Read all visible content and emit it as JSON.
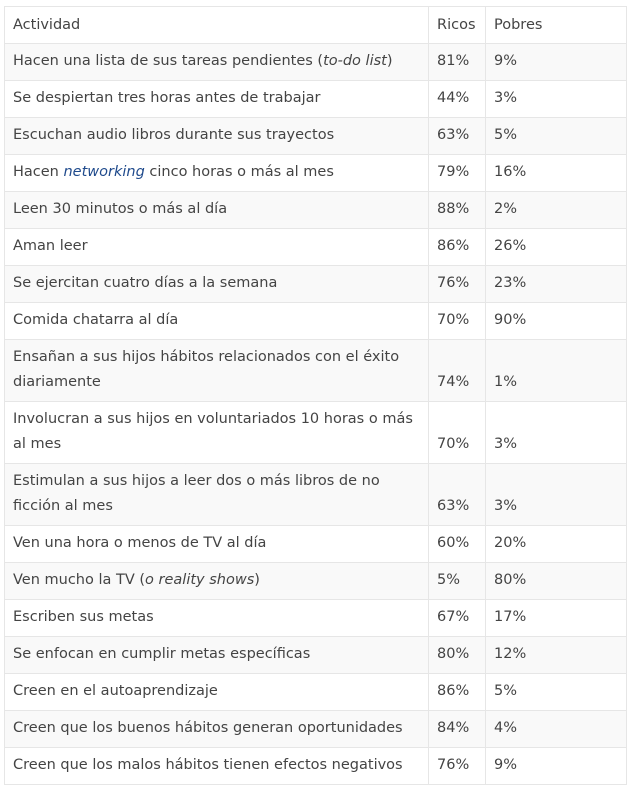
{
  "table": {
    "headers": [
      "Actividad",
      "Ricos",
      "Pobres"
    ],
    "rows": [
      {
        "pre": "Hacen una lista de sus tareas pendientes (",
        "em": "to-do list",
        "post": ")",
        "ricos": "81%",
        "pobres": "9%"
      },
      {
        "activity": "Se despiertan tres horas antes de trabajar",
        "ricos": "44%",
        "pobres": "3%"
      },
      {
        "activity": "Escuchan audio libros durante sus trayectos",
        "ricos": "63%",
        "pobres": "5%"
      },
      {
        "pre": "Hacen ",
        "link": "networking",
        "post": " cinco horas o más al mes",
        "ricos": "79%",
        "pobres": "16%"
      },
      {
        "activity": "Leen 30 minutos o más al día",
        "ricos": "88%",
        "pobres": "2%"
      },
      {
        "activity": "Aman leer",
        "ricos": "86%",
        "pobres": "26%"
      },
      {
        "activity": "Se ejercitan cuatro días a la semana",
        "ricos": "76%",
        "pobres": "23%"
      },
      {
        "activity": "Comida chatarra al día",
        "ricos": "70%",
        "pobres": "90%"
      },
      {
        "activity": "Ensañan a sus hijos hábitos relacionados con el éxito diariamente",
        "ricos": "74%",
        "pobres": "1%"
      },
      {
        "activity": "Involucran a sus hijos en voluntariados 10 horas o más al mes",
        "ricos": "70%",
        "pobres": "3%"
      },
      {
        "activity": "Estimulan a sus hijos a leer dos o más libros de no ficción al mes",
        "ricos": "63%",
        "pobres": "3%"
      },
      {
        "activity": "Ven una hora o menos de TV al día",
        "ricos": "60%",
        "pobres": "20%"
      },
      {
        "pre": "Ven mucho la TV (",
        "em": "o reality shows",
        "post": ")",
        "ricos": "5%",
        "pobres": "80%"
      },
      {
        "activity": "Escriben sus metas",
        "ricos": "67%",
        "pobres": "17%"
      },
      {
        "activity": "Se enfocan en cumplir metas específicas",
        "ricos": "80%",
        "pobres": "12%"
      },
      {
        "activity": "Creen en el autoaprendizaje",
        "ricos": "86%",
        "pobres": "5%"
      },
      {
        "activity": "Creen que los buenos hábitos generan oportunidades",
        "ricos": "84%",
        "pobres": "4%"
      },
      {
        "activity": "Creen que los malos hábitos tienen efectos negativos",
        "ricos": "76%",
        "pobres": "9%"
      }
    ]
  }
}
